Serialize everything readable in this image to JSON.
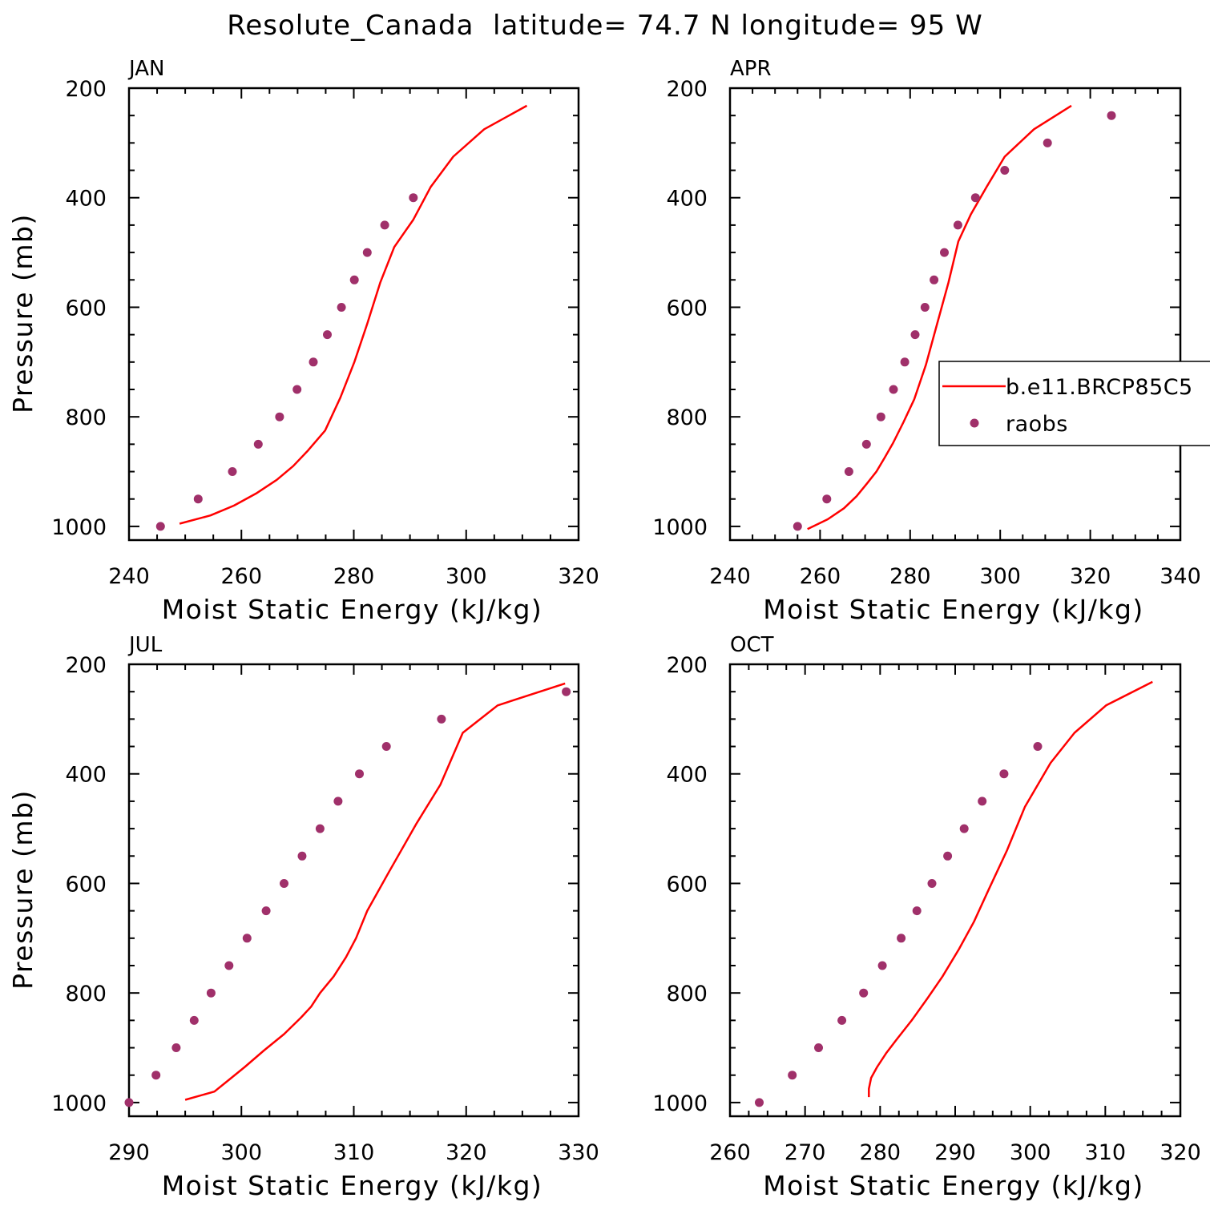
{
  "title": "Resolute_Canada  latitude= 74.7 N longitude= 95 W",
  "colors": {
    "model": "#ff0000",
    "obs": "#a0306a",
    "axis": "#000000"
  },
  "legend": {
    "model_label": "b.e11.BRCP85C5",
    "obs_label": "raobs",
    "panel_index": 1,
    "placement": "center-right"
  },
  "chart_data": [
    {
      "type": "scatter",
      "panel_title": "JAN",
      "xlabel": "Moist Static Energy (kJ/kg)",
      "ylabel": "Pressure (mb)",
      "xlim": [
        240,
        320
      ],
      "xticks": [
        240,
        260,
        280,
        300,
        320
      ],
      "ylim": [
        1025,
        200
      ],
      "yticks": [
        200,
        400,
        600,
        800,
        1000
      ],
      "series": [
        {
          "name": "b.e11.BRCP85C5",
          "kind": "line",
          "x": [
            249,
            254.5,
            258.7,
            262.6,
            266.3,
            269.2,
            271.8,
            274.9,
            277.6,
            280.1,
            282.4,
            284.7,
            287.2,
            290.6,
            293.7,
            297.7,
            303.2,
            310.8
          ],
          "y": [
            995,
            980,
            962,
            940,
            915,
            890,
            862,
            825,
            765,
            700,
            630,
            555,
            490,
            440,
            380,
            325,
            275,
            232
          ]
        },
        {
          "name": "raobs",
          "kind": "scatter",
          "x": [
            245.6,
            252.3,
            258.4,
            263.0,
            266.8,
            269.9,
            272.8,
            275.3,
            277.8,
            280.1,
            282.4,
            285.5,
            290.6
          ],
          "y": [
            1000,
            950,
            900,
            850,
            800,
            750,
            700,
            650,
            600,
            550,
            500,
            450,
            400
          ]
        }
      ]
    },
    {
      "type": "scatter",
      "panel_title": "APR",
      "xlabel": "Moist Static Energy (kJ/kg)",
      "ylabel": "",
      "xlim": [
        240,
        340
      ],
      "xticks": [
        240,
        260,
        280,
        300,
        320,
        340
      ],
      "ylim": [
        1025,
        200
      ],
      "yticks": [
        200,
        400,
        600,
        800,
        1000
      ],
      "series": [
        {
          "name": "b.e11.BRCP85C5",
          "kind": "line",
          "x": [
            257.2,
            261.7,
            265.3,
            268.1,
            270.4,
            272.5,
            274.3,
            276.2,
            278.5,
            280.9,
            283.5,
            286.0,
            288.5,
            290.7,
            293.5,
            297.0,
            301.0,
            307.5,
            315.8
          ],
          "y": [
            1005,
            987,
            967,
            945,
            922,
            900,
            875,
            848,
            810,
            768,
            705,
            630,
            555,
            480,
            430,
            380,
            325,
            275,
            232
          ]
        },
        {
          "name": "raobs",
          "kind": "scatter",
          "x": [
            255.0,
            261.5,
            266.4,
            270.3,
            273.5,
            276.3,
            278.8,
            281.1,
            283.3,
            285.3,
            287.6,
            290.6,
            294.5,
            301.0,
            310.5,
            324.7
          ],
          "y": [
            1000,
            950,
            900,
            850,
            800,
            750,
            700,
            650,
            600,
            550,
            500,
            450,
            400,
            350,
            300,
            250
          ]
        }
      ]
    },
    {
      "type": "scatter",
      "panel_title": "JUL",
      "xlabel": "Moist Static Energy (kJ/kg)",
      "ylabel": "Pressure (mb)",
      "xlim": [
        290,
        330
      ],
      "xticks": [
        290,
        300,
        310,
        320,
        330
      ],
      "ylim": [
        1025,
        200
      ],
      "yticks": [
        200,
        400,
        600,
        800,
        1000
      ],
      "series": [
        {
          "name": "b.e11.BRCP85C5",
          "kind": "line",
          "x": [
            295.0,
            297.6,
            298.8,
            300.3,
            302.0,
            303.8,
            305.3,
            306.2,
            307.0,
            308.2,
            309.3,
            310.2,
            311.2,
            313.1,
            315.6,
            317.7,
            319.7,
            322.8,
            328.8
          ],
          "y": [
            995,
            980,
            960,
            935,
            905,
            875,
            845,
            825,
            800,
            770,
            735,
            700,
            650,
            580,
            490,
            420,
            325,
            275,
            235
          ]
        },
        {
          "name": "raobs",
          "kind": "scatter",
          "x": [
            290.0,
            292.4,
            294.2,
            295.8,
            297.3,
            298.9,
            300.5,
            302.2,
            303.8,
            305.4,
            307.0,
            308.6,
            310.5,
            312.9,
            317.8,
            328.9
          ],
          "y": [
            1000,
            950,
            900,
            850,
            800,
            750,
            700,
            650,
            600,
            550,
            500,
            450,
            400,
            350,
            300,
            250
          ]
        }
      ]
    },
    {
      "type": "scatter",
      "panel_title": "OCT",
      "xlabel": "Moist Static Energy (kJ/kg)",
      "ylabel": "",
      "xlim": [
        260,
        320
      ],
      "xticks": [
        260,
        270,
        280,
        290,
        300,
        310,
        320
      ],
      "ylim": [
        1025,
        200
      ],
      "yticks": [
        200,
        400,
        600,
        800,
        1000
      ],
      "series": [
        {
          "name": "b.e11.BRCP85C5",
          "kind": "line",
          "x": [
            278.5,
            278.5,
            278.8,
            279.6,
            280.8,
            282.2,
            284.2,
            286.3,
            288.3,
            290.5,
            292.5,
            294.5,
            296.9,
            299.3,
            302.7,
            305.9,
            310.1,
            316.3
          ],
          "y": [
            990,
            975,
            955,
            935,
            910,
            885,
            850,
            810,
            770,
            720,
            670,
            610,
            540,
            460,
            380,
            325,
            275,
            232
          ]
        },
        {
          "name": "raobs",
          "kind": "scatter",
          "x": [
            263.9,
            268.3,
            271.8,
            274.9,
            277.8,
            280.3,
            282.8,
            284.9,
            286.9,
            289.0,
            291.2,
            293.6,
            296.5,
            301.0
          ],
          "y": [
            1000,
            950,
            900,
            850,
            800,
            750,
            700,
            650,
            600,
            550,
            500,
            450,
            400,
            350
          ]
        }
      ]
    }
  ]
}
